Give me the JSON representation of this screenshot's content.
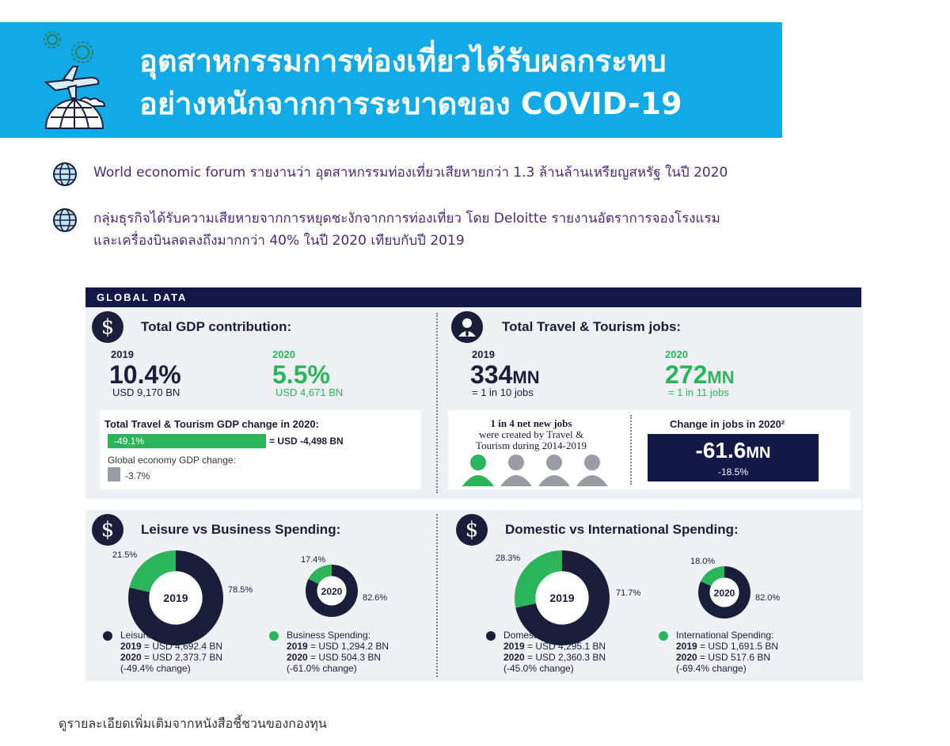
{
  "colors": {
    "banner": "#11a9e6",
    "navy": "#121848",
    "green": "#2bb45a",
    "gray": "#9a9ca4",
    "bullet_text": "#4a2a7a"
  },
  "banner": {
    "icon": "travel-gears-plane-globe-icon",
    "title_line1": "อุตสาหกรรมการท่องเที่ยวได้รับผลกระทบ",
    "title_line2": "อย่างหนักจากการระบาดของ COVID-19"
  },
  "bullets": [
    {
      "icon": "globe-icon",
      "line1": "World economic forum รายงานว่า อุตสาหกรรมท่องเที่ยวเสียหายกว่า 1.3 ล้านล้านเหรียญสหรัฐ ในปี 2020",
      "line2": ""
    },
    {
      "icon": "globe-icon",
      "line1": "กลุ่มธุรกิจได้รับความเสียหายจากการหยุดชะงักจากการท่องเที่ยว โดย Deloitte รายงานอัตราการจองโรงแรม",
      "line2": "และเครื่องบินลดลงถึงมากกว่า 40% ในปี 2020 เทียบกับปี 2019"
    }
  ],
  "panel": {
    "header": "GLOBAL DATA",
    "gdp": {
      "icon": "dollar-icon",
      "title": "Total GDP contribution:",
      "y2019": "2019",
      "v2019": "10.4%",
      "s2019": "USD 9,170 BN",
      "y2020": "2020",
      "v2020": "5.5%",
      "s2020": "USD 4,671 BN",
      "change_title": "Total Travel & Tourism GDP change in 2020:",
      "tt_change": "-49.1%",
      "tt_change_usd": "= USD -4,498 BN",
      "global_label": "Global economy GDP change:",
      "global_change": "-3.7%"
    },
    "jobs": {
      "icon": "person-icon",
      "title": "Total Travel & Tourism jobs:",
      "y2019": "2019",
      "v2019_num": "334",
      "v2019_unit": "MN",
      "s2019": "= 1 in 10 jobs",
      "y2020": "2020",
      "v2020_num": "272",
      "v2020_unit": "MN",
      "s2020": "= 1 in 11 jobs",
      "note_l1": "1 in 4 net new jobs",
      "note_l2": "were created by Travel &",
      "note_l3": "Tourism during 2014-2019",
      "change_title": "Change in jobs in 2020²",
      "change_num": "-61.6",
      "change_unit": "MN",
      "change_pct": "-18.5%"
    },
    "leisure": {
      "icon": "dollar-icon",
      "title": "Leisure vs Business Spending:",
      "legend1_label": "Leisure Spending:",
      "legend1_2019_y": "2019",
      "legend1_2019_v": "= USD 4,692.4 BN",
      "legend1_2020_y": "2020",
      "legend1_2020_v": "= USD 2,373.7 BN",
      "legend1_change": "(-49.4% change)",
      "legend2_label": "Business Spending:",
      "legend2_2019_y": "2019",
      "legend2_2019_v": "= USD 1,294.2 BN",
      "legend2_2020_y": "2020",
      "legend2_2020_v": "= USD 504.3 BN",
      "legend2_change": "(-61.0% change)"
    },
    "domestic": {
      "icon": "dollar-icon",
      "title": "Domestic vs International Spending:",
      "legend1_label": "Domestic Spending:",
      "legend1_2019_y": "2019",
      "legend1_2019_v": "= USD 4,295.1 BN",
      "legend1_2020_y": "2020",
      "legend1_2020_v": "= USD 2,360.3 BN",
      "legend1_change": "(-45.0% change)",
      "legend2_label": "International Spending:",
      "legend2_2019_y": "2019",
      "legend2_2019_v": "= USD 1,691.5 BN",
      "legend2_2020_y": "2020",
      "legend2_2020_v": "= USD 517.6 BN",
      "legend2_change": "(-69.4% change)"
    }
  },
  "chart_data": [
    {
      "type": "pie",
      "title": "Leisure vs Business Spending:",
      "center_label": "2019",
      "categories": [
        "Leisure Spending",
        "Business Spending"
      ],
      "values": [
        78.5,
        21.5
      ],
      "labels": [
        "78.5%",
        "21.5%"
      ],
      "colors": [
        "#1b1e3a",
        "#2bb45a"
      ]
    },
    {
      "type": "pie",
      "title": "Leisure vs Business Spending:",
      "center_label": "2020",
      "categories": [
        "Leisure Spending",
        "Business Spending"
      ],
      "values": [
        82.6,
        17.4
      ],
      "labels": [
        "82.6%",
        "17.4%"
      ],
      "colors": [
        "#1b1e3a",
        "#2bb45a"
      ]
    },
    {
      "type": "pie",
      "title": "Domestic vs International Spending:",
      "center_label": "2019",
      "categories": [
        "Domestic Spending",
        "International Spending"
      ],
      "values": [
        71.7,
        28.3
      ],
      "labels": [
        "71.7%",
        "28.3%"
      ],
      "colors": [
        "#1b1e3a",
        "#2bb45a"
      ]
    },
    {
      "type": "pie",
      "title": "Domestic vs International Spending:",
      "center_label": "2020",
      "categories": [
        "Domestic Spending",
        "International Spending"
      ],
      "values": [
        82.0,
        18.0
      ],
      "labels": [
        "82.0%",
        "18.0%"
      ],
      "colors": [
        "#1b1e3a",
        "#2bb45a"
      ]
    }
  ],
  "footnote": "ดูรายละเอียดเพิ่มเติมจากหนังสือชี้ชวนของกองทุน"
}
